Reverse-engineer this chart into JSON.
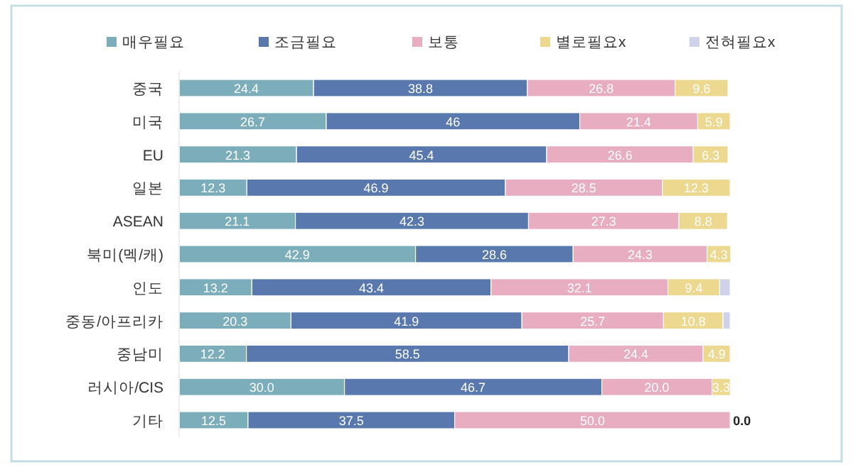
{
  "chart_data": {
    "type": "bar",
    "orientation": "horizontal",
    "stacked": true,
    "legend": "top",
    "categories": [
      "중국",
      "미국",
      "EU",
      "일본",
      "ASEAN",
      "북미(멕/캐)",
      "인도",
      "중동/아프리카",
      "중남미",
      "러시아/CIS",
      "기타"
    ],
    "series": [
      {
        "name": "매우필요",
        "color": "#7badbb",
        "values": [
          24.4,
          26.7,
          21.3,
          12.3,
          21.1,
          42.9,
          13.2,
          20.3,
          12.2,
          30.0,
          12.5
        ],
        "value_labels": [
          "24.4",
          "26.7",
          "21.3",
          "12.3",
          "21.1",
          "42.9",
          "13.2",
          "20.3",
          "12.2",
          "30.0",
          "12.5"
        ]
      },
      {
        "name": "조금필요",
        "color": "#5878ae",
        "values": [
          38.8,
          46,
          45.4,
          46.9,
          42.3,
          28.6,
          43.4,
          41.9,
          58.5,
          46.7,
          37.5
        ],
        "value_labels": [
          "38.8",
          "46",
          "45.4",
          "46.9",
          "42.3",
          "28.6",
          "43.4",
          "41.9",
          "58.5",
          "46.7",
          "37.5"
        ]
      },
      {
        "name": "보통",
        "color": "#e8adc0",
        "values": [
          26.8,
          21.4,
          26.6,
          28.5,
          27.3,
          24.3,
          32.1,
          25.7,
          24.4,
          20.0,
          50.0
        ],
        "value_labels": [
          "26.8",
          "21.4",
          "26.6",
          "28.5",
          "27.3",
          "24.3",
          "32.1",
          "25.7",
          "24.4",
          "20.0",
          "50.0"
        ]
      },
      {
        "name": "별로필요x",
        "color": "#ecd88f",
        "values": [
          9.6,
          5.9,
          6.3,
          12.3,
          8.8,
          4.3,
          9.4,
          10.8,
          4.9,
          3.3,
          0.0
        ],
        "value_labels": [
          "9.6",
          "5.9",
          "6.3",
          "12.3",
          "8.8",
          "4.3",
          "9.4",
          "10.8",
          "4.9",
          "3.3",
          "0.0"
        ]
      },
      {
        "name": "전혀필요x",
        "color": "#cfd3ea",
        "values": [
          0,
          0,
          0,
          0,
          0,
          0,
          1.9,
          1.3,
          0,
          0,
          0
        ]
      }
    ]
  }
}
